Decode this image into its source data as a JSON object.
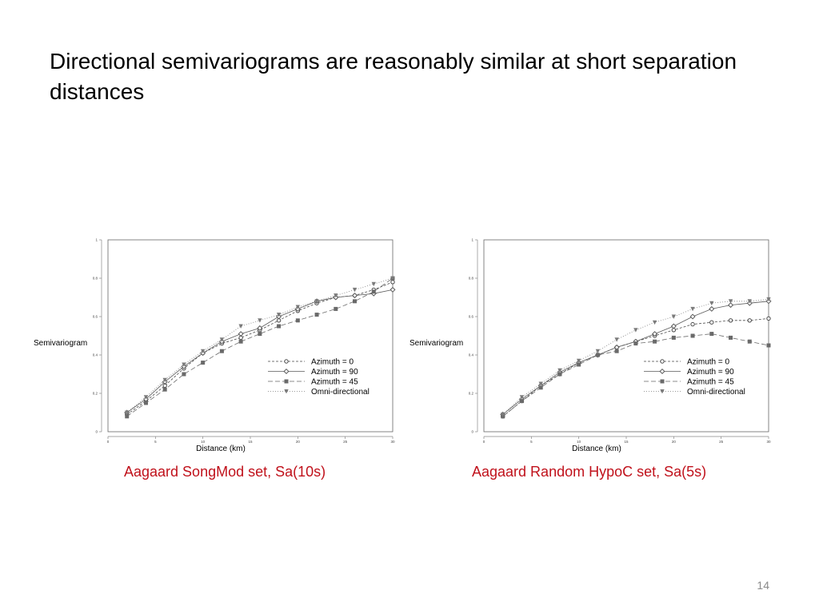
{
  "slide": {
    "title": "Directional semivariograms are reasonably similar at short separation distances",
    "page_number": "14"
  },
  "captions": {
    "left": "Aagaard SongMod set, Sa(10s)",
    "right": "Aagaard Random HypoC set, Sa(5s)"
  },
  "chart_data": [
    {
      "type": "line",
      "caption": "Aagaard SongMod set, Sa(10s)",
      "xlabel": "Distance (km)",
      "ylabel": "Semivariogram",
      "xlim": [
        0,
        30
      ],
      "ylim": [
        0,
        1
      ],
      "xticks": [
        "0",
        "5",
        "10",
        "15",
        "20",
        "25",
        "30"
      ],
      "yticks": [
        "0",
        "0.2",
        "0.4",
        "0.6",
        "0.8",
        "1"
      ],
      "grid": false,
      "legend_position": "bottom-right",
      "series": [
        {
          "name": "Azimuth = 0",
          "marker": "circle",
          "dash": "3,2",
          "x": [
            2,
            4,
            6,
            8,
            10,
            12,
            14,
            16,
            18,
            20,
            22,
            24,
            26,
            28,
            30
          ],
          "y": [
            0.09,
            0.16,
            0.24,
            0.33,
            0.41,
            0.46,
            0.49,
            0.53,
            0.58,
            0.63,
            0.67,
            0.7,
            0.71,
            0.74,
            0.78
          ]
        },
        {
          "name": "Azimuth = 90",
          "marker": "diamond",
          "dash": "none",
          "x": [
            2,
            4,
            6,
            8,
            10,
            12,
            14,
            16,
            18,
            20,
            22,
            24,
            26,
            28,
            30
          ],
          "y": [
            0.1,
            0.17,
            0.26,
            0.34,
            0.41,
            0.47,
            0.51,
            0.54,
            0.6,
            0.64,
            0.68,
            0.7,
            0.71,
            0.72,
            0.74
          ]
        },
        {
          "name": "Azimuth = 45",
          "marker": "square",
          "dash": "6,3",
          "x": [
            2,
            4,
            6,
            8,
            10,
            12,
            14,
            16,
            18,
            20,
            22,
            24,
            26,
            28,
            30
          ],
          "y": [
            0.08,
            0.15,
            0.22,
            0.3,
            0.36,
            0.42,
            0.47,
            0.51,
            0.55,
            0.58,
            0.61,
            0.64,
            0.68,
            0.73,
            0.8
          ]
        },
        {
          "name": "Omni-directional",
          "marker": "triangle",
          "dash": "1,2",
          "x": [
            2,
            4,
            6,
            8,
            10,
            12,
            14,
            16,
            18,
            20,
            22,
            24,
            26,
            28,
            30
          ],
          "y": [
            0.1,
            0.18,
            0.27,
            0.35,
            0.42,
            0.48,
            0.55,
            0.58,
            0.61,
            0.65,
            0.68,
            0.71,
            0.74,
            0.77,
            0.8
          ]
        }
      ]
    },
    {
      "type": "line",
      "caption": "Aagaard Random HypoC set, Sa(5s)",
      "xlabel": "Distance (km)",
      "ylabel": "Semivariogram",
      "xlim": [
        0,
        30
      ],
      "ylim": [
        0,
        1
      ],
      "xticks": [
        "0",
        "5",
        "10",
        "15",
        "20",
        "25",
        "30"
      ],
      "yticks": [
        "0",
        "0.2",
        "0.4",
        "0.6",
        "0.8",
        "1"
      ],
      "grid": false,
      "legend_position": "bottom-right",
      "series": [
        {
          "name": "Azimuth = 0",
          "marker": "circle",
          "dash": "3,2",
          "x": [
            2,
            4,
            6,
            8,
            10,
            12,
            14,
            16,
            18,
            20,
            22,
            24,
            26,
            28,
            30
          ],
          "y": [
            0.08,
            0.16,
            0.24,
            0.3,
            0.36,
            0.4,
            0.44,
            0.47,
            0.5,
            0.53,
            0.56,
            0.57,
            0.58,
            0.58,
            0.59
          ]
        },
        {
          "name": "Azimuth = 90",
          "marker": "diamond",
          "dash": "none",
          "x": [
            2,
            4,
            6,
            8,
            10,
            12,
            14,
            16,
            18,
            20,
            22,
            24,
            26,
            28,
            30
          ],
          "y": [
            0.09,
            0.17,
            0.24,
            0.31,
            0.36,
            0.4,
            0.44,
            0.47,
            0.51,
            0.55,
            0.6,
            0.64,
            0.66,
            0.67,
            0.68
          ]
        },
        {
          "name": "Azimuth = 45",
          "marker": "square",
          "dash": "6,3",
          "x": [
            2,
            4,
            6,
            8,
            10,
            12,
            14,
            16,
            18,
            20,
            22,
            24,
            26,
            28,
            30
          ],
          "y": [
            0.08,
            0.16,
            0.23,
            0.3,
            0.35,
            0.4,
            0.42,
            0.46,
            0.47,
            0.49,
            0.5,
            0.51,
            0.49,
            0.47,
            0.45
          ]
        },
        {
          "name": "Omni-directional",
          "marker": "triangle",
          "dash": "1,2",
          "x": [
            2,
            4,
            6,
            8,
            10,
            12,
            14,
            16,
            18,
            20,
            22,
            24,
            26,
            28,
            30
          ],
          "y": [
            0.09,
            0.18,
            0.25,
            0.32,
            0.37,
            0.42,
            0.48,
            0.53,
            0.57,
            0.6,
            0.64,
            0.67,
            0.68,
            0.68,
            0.69
          ]
        }
      ]
    }
  ]
}
